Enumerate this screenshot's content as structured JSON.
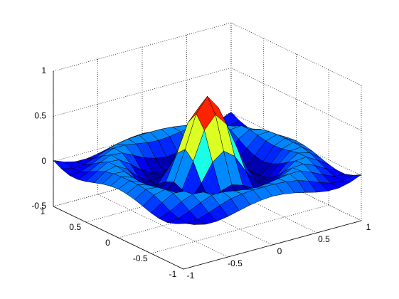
{
  "chart_data": {
    "type": "surface",
    "colormap": "jet",
    "grid": true,
    "x": [
      -1,
      -0.875,
      -0.75,
      -0.625,
      -0.5,
      -0.375,
      -0.25,
      -0.125,
      0,
      0.125,
      0.25,
      0.375,
      0.5,
      0.625,
      0.75,
      0.875,
      1
    ],
    "y": [
      -1,
      -0.875,
      -0.75,
      -0.625,
      -0.5,
      -0.375,
      -0.25,
      -0.125,
      0,
      0.125,
      0.25,
      0.375,
      0.5,
      0.625,
      0.75,
      0.875,
      1
    ],
    "z": [
      [
        0.01,
        -0.04,
        -0.07,
        -0.07,
        -0.05,
        -0.02,
        0.01,
        0.03,
        0.04,
        0.03,
        0.01,
        -0.02,
        -0.05,
        -0.07,
        -0.07,
        -0.04,
        0.01
      ],
      [
        -0.04,
        -0.07,
        -0.06,
        -0.02,
        0.03,
        0.07,
        0.09,
        0.1,
        0.1,
        0.1,
        0.09,
        0.07,
        0.03,
        -0.02,
        -0.06,
        -0.07,
        -0.04
      ],
      [
        -0.07,
        -0.06,
        -0.01,
        0.05,
        0.1,
        0.1,
        0.08,
        0.06,
        0.05,
        0.06,
        0.08,
        0.1,
        0.1,
        0.05,
        -0.01,
        -0.06,
        -0.07
      ],
      [
        -0.07,
        -0.02,
        0.05,
        0.1,
        0.09,
        0.03,
        -0.03,
        -0.07,
        -0.09,
        -0.07,
        -0.03,
        0.03,
        0.09,
        0.1,
        0.05,
        -0.02,
        -0.07
      ],
      [
        -0.05,
        0.03,
        0.1,
        0.09,
        0.01,
        -0.09,
        -0.15,
        -0.17,
        -0.17,
        -0.17,
        -0.15,
        -0.09,
        0.01,
        0.09,
        0.1,
        0.03,
        -0.05
      ],
      [
        -0.02,
        0.07,
        0.1,
        0.03,
        -0.09,
        -0.17,
        -0.16,
        -0.09,
        -0.05,
        -0.09,
        -0.16,
        -0.17,
        -0.09,
        0.03,
        0.1,
        0.07,
        -0.02
      ],
      [
        0.01,
        0.09,
        0.08,
        -0.03,
        -0.15,
        -0.16,
        -0.01,
        0.19,
        0.28,
        0.19,
        -0.01,
        -0.16,
        -0.15,
        -0.03,
        0.08,
        0.09,
        0.01
      ],
      [
        0.03,
        0.1,
        0.06,
        -0.07,
        -0.17,
        -0.09,
        0.19,
        0.5,
        0.64,
        0.5,
        0.19,
        -0.09,
        -0.17,
        -0.07,
        0.06,
        0.1,
        0.03
      ],
      [
        0.04,
        0.1,
        0.05,
        -0.09,
        -0.17,
        -0.05,
        0.28,
        0.64,
        0.8,
        0.64,
        0.28,
        -0.05,
        -0.17,
        -0.09,
        0.05,
        0.1,
        0.04
      ],
      [
        0.03,
        0.1,
        0.06,
        -0.07,
        -0.17,
        -0.09,
        0.19,
        0.5,
        0.64,
        0.5,
        0.19,
        -0.09,
        -0.17,
        -0.07,
        0.06,
        0.1,
        0.03
      ],
      [
        0.01,
        0.09,
        0.08,
        -0.03,
        -0.15,
        -0.16,
        -0.01,
        0.19,
        0.28,
        0.19,
        -0.01,
        -0.16,
        -0.15,
        -0.03,
        0.08,
        0.09,
        0.01
      ],
      [
        -0.02,
        0.07,
        0.1,
        0.03,
        -0.09,
        -0.17,
        -0.16,
        -0.09,
        -0.05,
        -0.09,
        -0.16,
        -0.17,
        -0.09,
        0.03,
        0.1,
        0.07,
        -0.02
      ],
      [
        -0.05,
        0.03,
        0.1,
        0.09,
        0.01,
        -0.09,
        -0.15,
        -0.17,
        -0.17,
        -0.17,
        -0.15,
        -0.09,
        0.01,
        0.09,
        0.1,
        0.03,
        -0.05
      ],
      [
        -0.07,
        -0.02,
        0.05,
        0.1,
        0.09,
        0.03,
        -0.03,
        -0.07,
        -0.09,
        -0.07,
        -0.03,
        0.03,
        0.09,
        0.1,
        0.05,
        -0.02,
        -0.07
      ],
      [
        -0.07,
        -0.06,
        -0.01,
        0.05,
        0.1,
        0.1,
        0.08,
        0.06,
        0.05,
        0.06,
        0.08,
        0.1,
        0.1,
        0.05,
        -0.01,
        -0.06,
        -0.07
      ],
      [
        -0.04,
        -0.07,
        -0.06,
        -0.02,
        0.03,
        0.07,
        0.09,
        0.1,
        0.1,
        0.1,
        0.09,
        0.07,
        0.03,
        -0.02,
        -0.06,
        -0.07,
        -0.04
      ],
      [
        0.01,
        -0.04,
        -0.07,
        -0.07,
        -0.05,
        -0.02,
        0.01,
        0.03,
        0.04,
        0.03,
        0.01,
        -0.02,
        -0.05,
        -0.07,
        -0.07,
        -0.04,
        0.01
      ]
    ],
    "xlim": [
      -1,
      1
    ],
    "ylim": [
      -1,
      1
    ],
    "zlim": [
      -0.5,
      1
    ],
    "xticks": [
      -1,
      -0.5,
      0,
      0.5,
      1
    ],
    "yticks": [
      -1,
      -0.5,
      0,
      0.5,
      1
    ],
    "zticks": [
      -0.5,
      0,
      0.5,
      1
    ]
  }
}
